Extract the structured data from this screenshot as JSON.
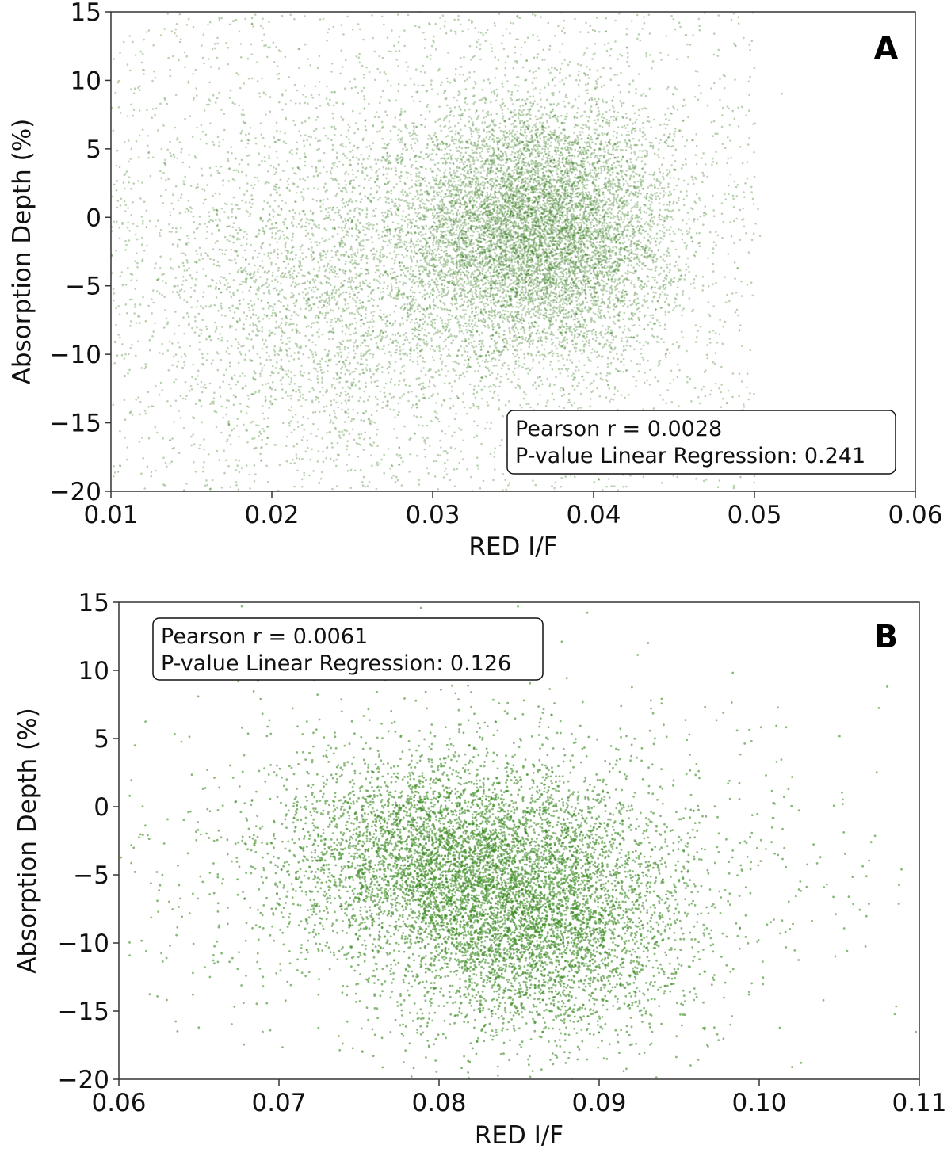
{
  "chart_data": [
    {
      "type": "scatter",
      "panel_label": "A",
      "xlabel": "RED I/F",
      "ylabel": "Absorption Depth (%)",
      "xlim": [
        0.01,
        0.06
      ],
      "ylim": [
        -20,
        15
      ],
      "xticks": [
        "0.01",
        "0.02",
        "0.03",
        "0.04",
        "0.05",
        "0.06"
      ],
      "xtick_values": [
        0.01,
        0.02,
        0.03,
        0.04,
        0.05,
        0.06
      ],
      "yticks": [
        "15",
        "10",
        "5",
        "0",
        "−5",
        "−10",
        "−15",
        "−20"
      ],
      "ytick_values": [
        15,
        10,
        5,
        0,
        -5,
        -10,
        -15,
        -20
      ],
      "grid": false,
      "marker_color": "#3a7d22",
      "annotation": {
        "location": "bottom-right",
        "lines": [
          "Pearson r = 0.0028",
          "P-value Linear Regression: 0.241"
        ]
      },
      "point_clusters": [
        {
          "center": [
            0.0365,
            -1.0
          ],
          "spread": [
            0.0042,
            4.6
          ],
          "relative_density": 0.62
        },
        {
          "center": [
            0.024,
            -5.0
          ],
          "spread": [
            0.006,
            6.5
          ],
          "relative_density": 0.2
        },
        {
          "range_x": [
            0.01,
            0.05
          ],
          "range_y": [
            -20,
            15
          ],
          "relative_density": 0.18
        }
      ]
    },
    {
      "type": "scatter",
      "panel_label": "B",
      "xlabel": "RED I/F",
      "ylabel": "Absorption Depth (%)",
      "xlim": [
        0.06,
        0.11
      ],
      "ylim": [
        -20,
        15
      ],
      "xticks": [
        "0.06",
        "0.07",
        "0.08",
        "0.09",
        "0.10",
        "0.11"
      ],
      "xtick_values": [
        0.06,
        0.07,
        0.08,
        0.09,
        0.1,
        0.11
      ],
      "yticks": [
        "15",
        "10",
        "5",
        "0",
        "−5",
        "−10",
        "−15",
        "−20"
      ],
      "ytick_values": [
        15,
        10,
        5,
        0,
        -5,
        -10,
        -15,
        -20
      ],
      "grid": false,
      "marker_color": "#3a8a22",
      "annotation": {
        "location": "top-left",
        "lines": [
          "Pearson r = 0.0061",
          "P-value Linear Regression: 0.126"
        ]
      },
      "point_clusters": [
        {
          "center": [
            0.081,
            -3.5
          ],
          "spread": [
            0.0055,
            3.5
          ],
          "relative_density": 0.45
        },
        {
          "center": [
            0.086,
            -9.5
          ],
          "spread": [
            0.0045,
            3.8
          ],
          "relative_density": 0.35
        },
        {
          "center": [
            0.083,
            -5.0
          ],
          "spread": [
            0.011,
            6.5
          ],
          "relative_density": 0.2
        }
      ]
    }
  ]
}
